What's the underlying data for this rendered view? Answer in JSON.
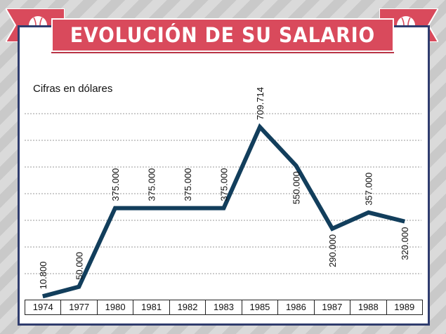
{
  "title": "EVOLUCIÓN DE SU SALARIO",
  "colors": {
    "line": "#123e5c",
    "banner": "#d94a5c",
    "frame": "#2f3c6e"
  },
  "icons": [
    "baseball-icon",
    "baseball-icon"
  ],
  "chart_data": {
    "type": "line",
    "title": "EVOLUCIÓN DE SU SALARIO",
    "ylabel": "Cifras en dólares",
    "xlabel": "",
    "ylim": [
      0,
      875000
    ],
    "grid": true,
    "categories": [
      "1974",
      "1977",
      "1980",
      "1981",
      "1982",
      "1983",
      "1985",
      "1986",
      "1987",
      "1988",
      "1989"
    ],
    "values": [
      10800,
      50000,
      375000,
      375000,
      375000,
      375000,
      709714,
      550000,
      290000,
      357000,
      320000
    ],
    "labels": [
      "10.800",
      "50.000",
      "375.000",
      "375.000",
      "375.000",
      "375.000",
      "709.714",
      "550.000",
      "290.000",
      "357.000",
      "320.000"
    ],
    "label_side": [
      "above",
      "above",
      "above",
      "above",
      "above",
      "above",
      "above",
      "below",
      "below",
      "above",
      "below"
    ]
  }
}
